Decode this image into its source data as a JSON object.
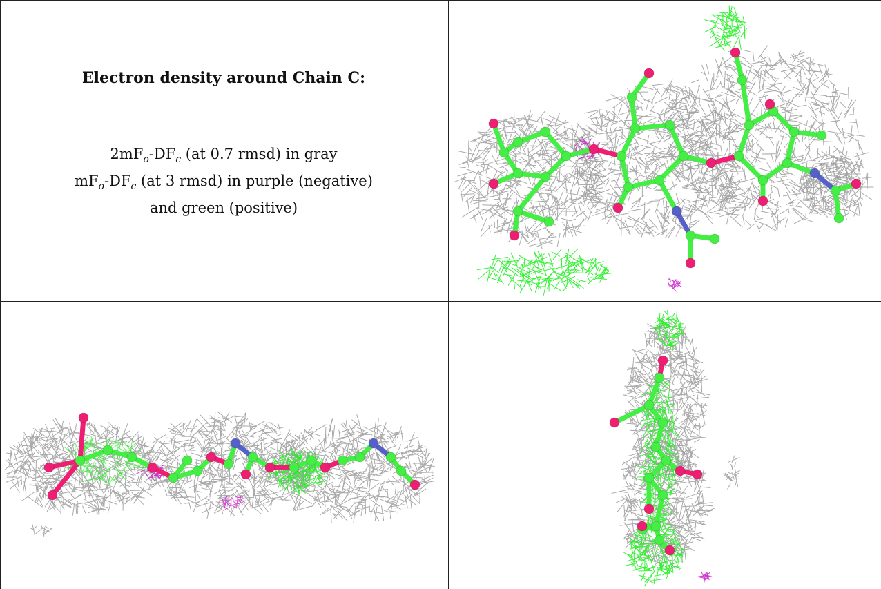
{
  "caption": {
    "title": "Electron density around Chain C:",
    "line1_parts": [
      "2mF",
      "o",
      "-DF",
      "c",
      " (at 0.7 rmsd) in gray"
    ],
    "line2_parts": [
      "mF",
      "o",
      "-DF",
      "c",
      " (at 3 rmsd) in purple (negative)"
    ],
    "line3": "and green (positive)"
  },
  "colors": {
    "mesh_gray": "#9a9a9a",
    "mesh_green": "#22ee22",
    "mesh_purple": "#cc22cc",
    "carbon": "#44ee44",
    "oxygen": "#ee1f72",
    "nitrogen": "#5560c8"
  },
  "panels": [
    {
      "name": "view-top-right",
      "view": "front"
    },
    {
      "name": "view-bottom-left",
      "view": "side"
    },
    {
      "name": "view-bottom-right",
      "view": "end-on"
    }
  ]
}
